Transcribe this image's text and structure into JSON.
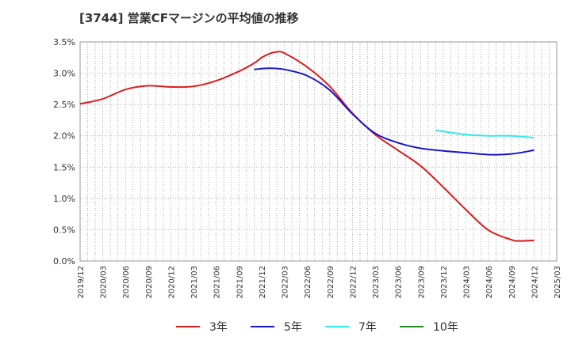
{
  "title": "[3744]  営業CFマージンの平均値の推移",
  "chart_data": {
    "type": "line",
    "title": "[3744]  営業CFマージンの平均値の推移",
    "xlabel": "",
    "ylabel": "",
    "ylim": [
      0,
      3.5
    ],
    "yticks": [
      "0.0%",
      "0.5%",
      "1.0%",
      "1.5%",
      "2.0%",
      "2.5%",
      "3.0%",
      "3.5%"
    ],
    "xticks": [
      "2019/12",
      "2020/03",
      "2020/06",
      "2020/09",
      "2020/12",
      "2021/03",
      "2021/06",
      "2021/09",
      "2021/12",
      "2022/03",
      "2022/06",
      "2022/09",
      "2022/12",
      "2023/03",
      "2023/06",
      "2023/09",
      "2023/12",
      "2024/03",
      "2024/06",
      "2024/09",
      "2024/12",
      "2025/03"
    ],
    "grid": true,
    "legend_position": "bottom",
    "series": [
      {
        "name": "3年",
        "color": "#dd1c1c",
        "x": [
          "2019/12",
          "2020/03",
          "2020/06",
          "2020/09",
          "2020/12",
          "2021/03",
          "2021/06",
          "2021/09",
          "2021/11",
          "2021/12",
          "2022/01",
          "2022/02",
          "2022/03",
          "2022/06",
          "2022/09",
          "2022/12",
          "2023/03",
          "2023/06",
          "2023/09",
          "2023/12",
          "2024/03",
          "2024/06",
          "2024/09",
          "2024/10",
          "2024/12"
        ],
        "values": [
          2.51,
          2.59,
          2.74,
          2.8,
          2.78,
          2.79,
          2.88,
          3.03,
          3.16,
          3.25,
          3.31,
          3.34,
          3.32,
          3.1,
          2.79,
          2.36,
          2.02,
          1.77,
          1.52,
          1.18,
          0.82,
          0.49,
          0.34,
          0.32,
          0.33
        ]
      },
      {
        "name": "5年",
        "color": "#1515c8",
        "x": [
          "2021/11",
          "2022/01",
          "2022/03",
          "2022/06",
          "2022/09",
          "2022/12",
          "2023/03",
          "2023/06",
          "2023/09",
          "2023/12",
          "2024/03",
          "2024/06",
          "2024/09",
          "2024/12"
        ],
        "values": [
          3.06,
          3.08,
          3.06,
          2.96,
          2.73,
          2.35,
          2.04,
          1.89,
          1.8,
          1.76,
          1.73,
          1.7,
          1.71,
          1.77
        ]
      },
      {
        "name": "7年",
        "color": "#33e8f0",
        "x": [
          "2023/11",
          "2023/12",
          "2024/03",
          "2024/06",
          "2024/09",
          "2024/12"
        ],
        "values": [
          2.09,
          2.07,
          2.02,
          2.0,
          2.0,
          1.97
        ]
      },
      {
        "name": "10年",
        "color": "#228b22",
        "x": [],
        "values": []
      }
    ]
  }
}
